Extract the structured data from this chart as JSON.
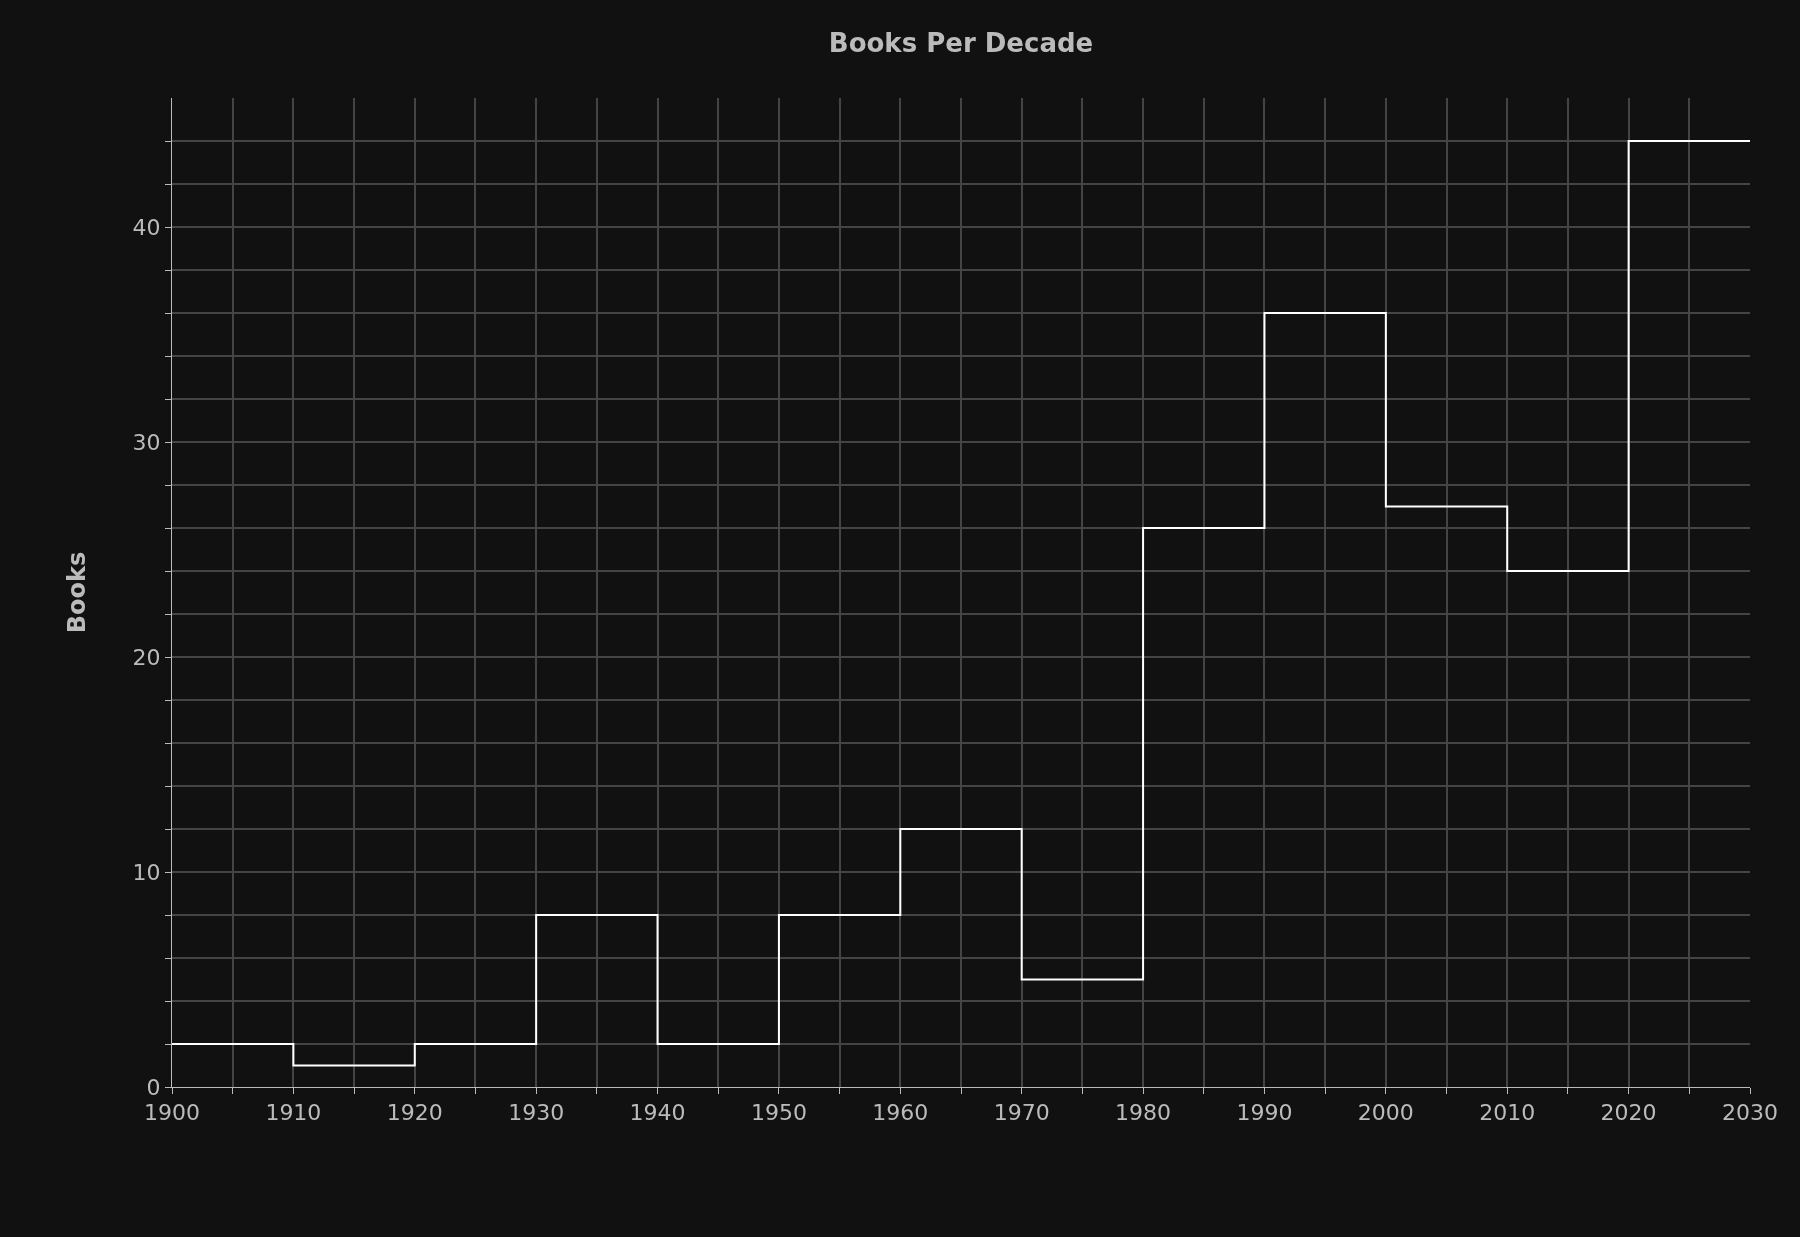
{
  "chart_data": {
    "type": "histogram",
    "title": "Books Per Decade",
    "ylabel": "Books",
    "bins": [
      1900,
      1910,
      1920,
      1930,
      1940,
      1950,
      1960,
      1970,
      1980,
      1990,
      2000,
      2010,
      2020,
      2030
    ],
    "values": [
      2,
      1,
      2,
      8,
      2,
      8,
      12,
      5,
      26,
      36,
      27,
      24,
      44
    ],
    "color": "#ffffff",
    "xlim": [
      1900,
      2030
    ],
    "xticks": [
      1900,
      {
        "value": 1905,
        "label": null
      },
      1910,
      {
        "value": 1915,
        "label": null
      },
      1920,
      {
        "value": 1925,
        "label": null
      },
      1930,
      {
        "value": 1935,
        "label": null
      },
      1940,
      {
        "value": 1945,
        "label": null
      },
      1950,
      {
        "value": 1955,
        "label": null
      },
      1960,
      {
        "value": 1965,
        "label": null
      },
      1970,
      {
        "value": 1975,
        "label": null
      },
      1980,
      {
        "value": 1985,
        "label": null
      },
      1990,
      {
        "value": 1995,
        "label": null
      },
      2000,
      {
        "value": 2005,
        "label": null
      },
      2010,
      {
        "value": 2015,
        "label": null
      },
      2020,
      {
        "value": 2025,
        "label": null
      },
      2030
    ],
    "ylim": [
      0,
      46
    ],
    "yticks": [
      0,
      {
        "value": 2,
        "label": null
      },
      {
        "value": 4,
        "label": null
      },
      {
        "value": 6,
        "label": null
      },
      {
        "value": 8,
        "label": null
      },
      10,
      {
        "value": 12,
        "label": null
      },
      {
        "value": 14,
        "label": null
      },
      {
        "value": 16,
        "label": null
      },
      {
        "value": 18,
        "label": null
      },
      20,
      {
        "value": 22,
        "label": null
      },
      {
        "value": 24,
        "label": null
      },
      {
        "value": 26,
        "label": null
      },
      {
        "value": 28,
        "label": null
      },
      30,
      {
        "value": 32,
        "label": null
      },
      {
        "value": 34,
        "label": null
      },
      {
        "value": 36,
        "label": null
      },
      {
        "value": 38,
        "label": null
      },
      40,
      {
        "value": 42,
        "label": null
      },
      {
        "value": 44,
        "label": null
      }
    ],
    "grid": true
  }
}
